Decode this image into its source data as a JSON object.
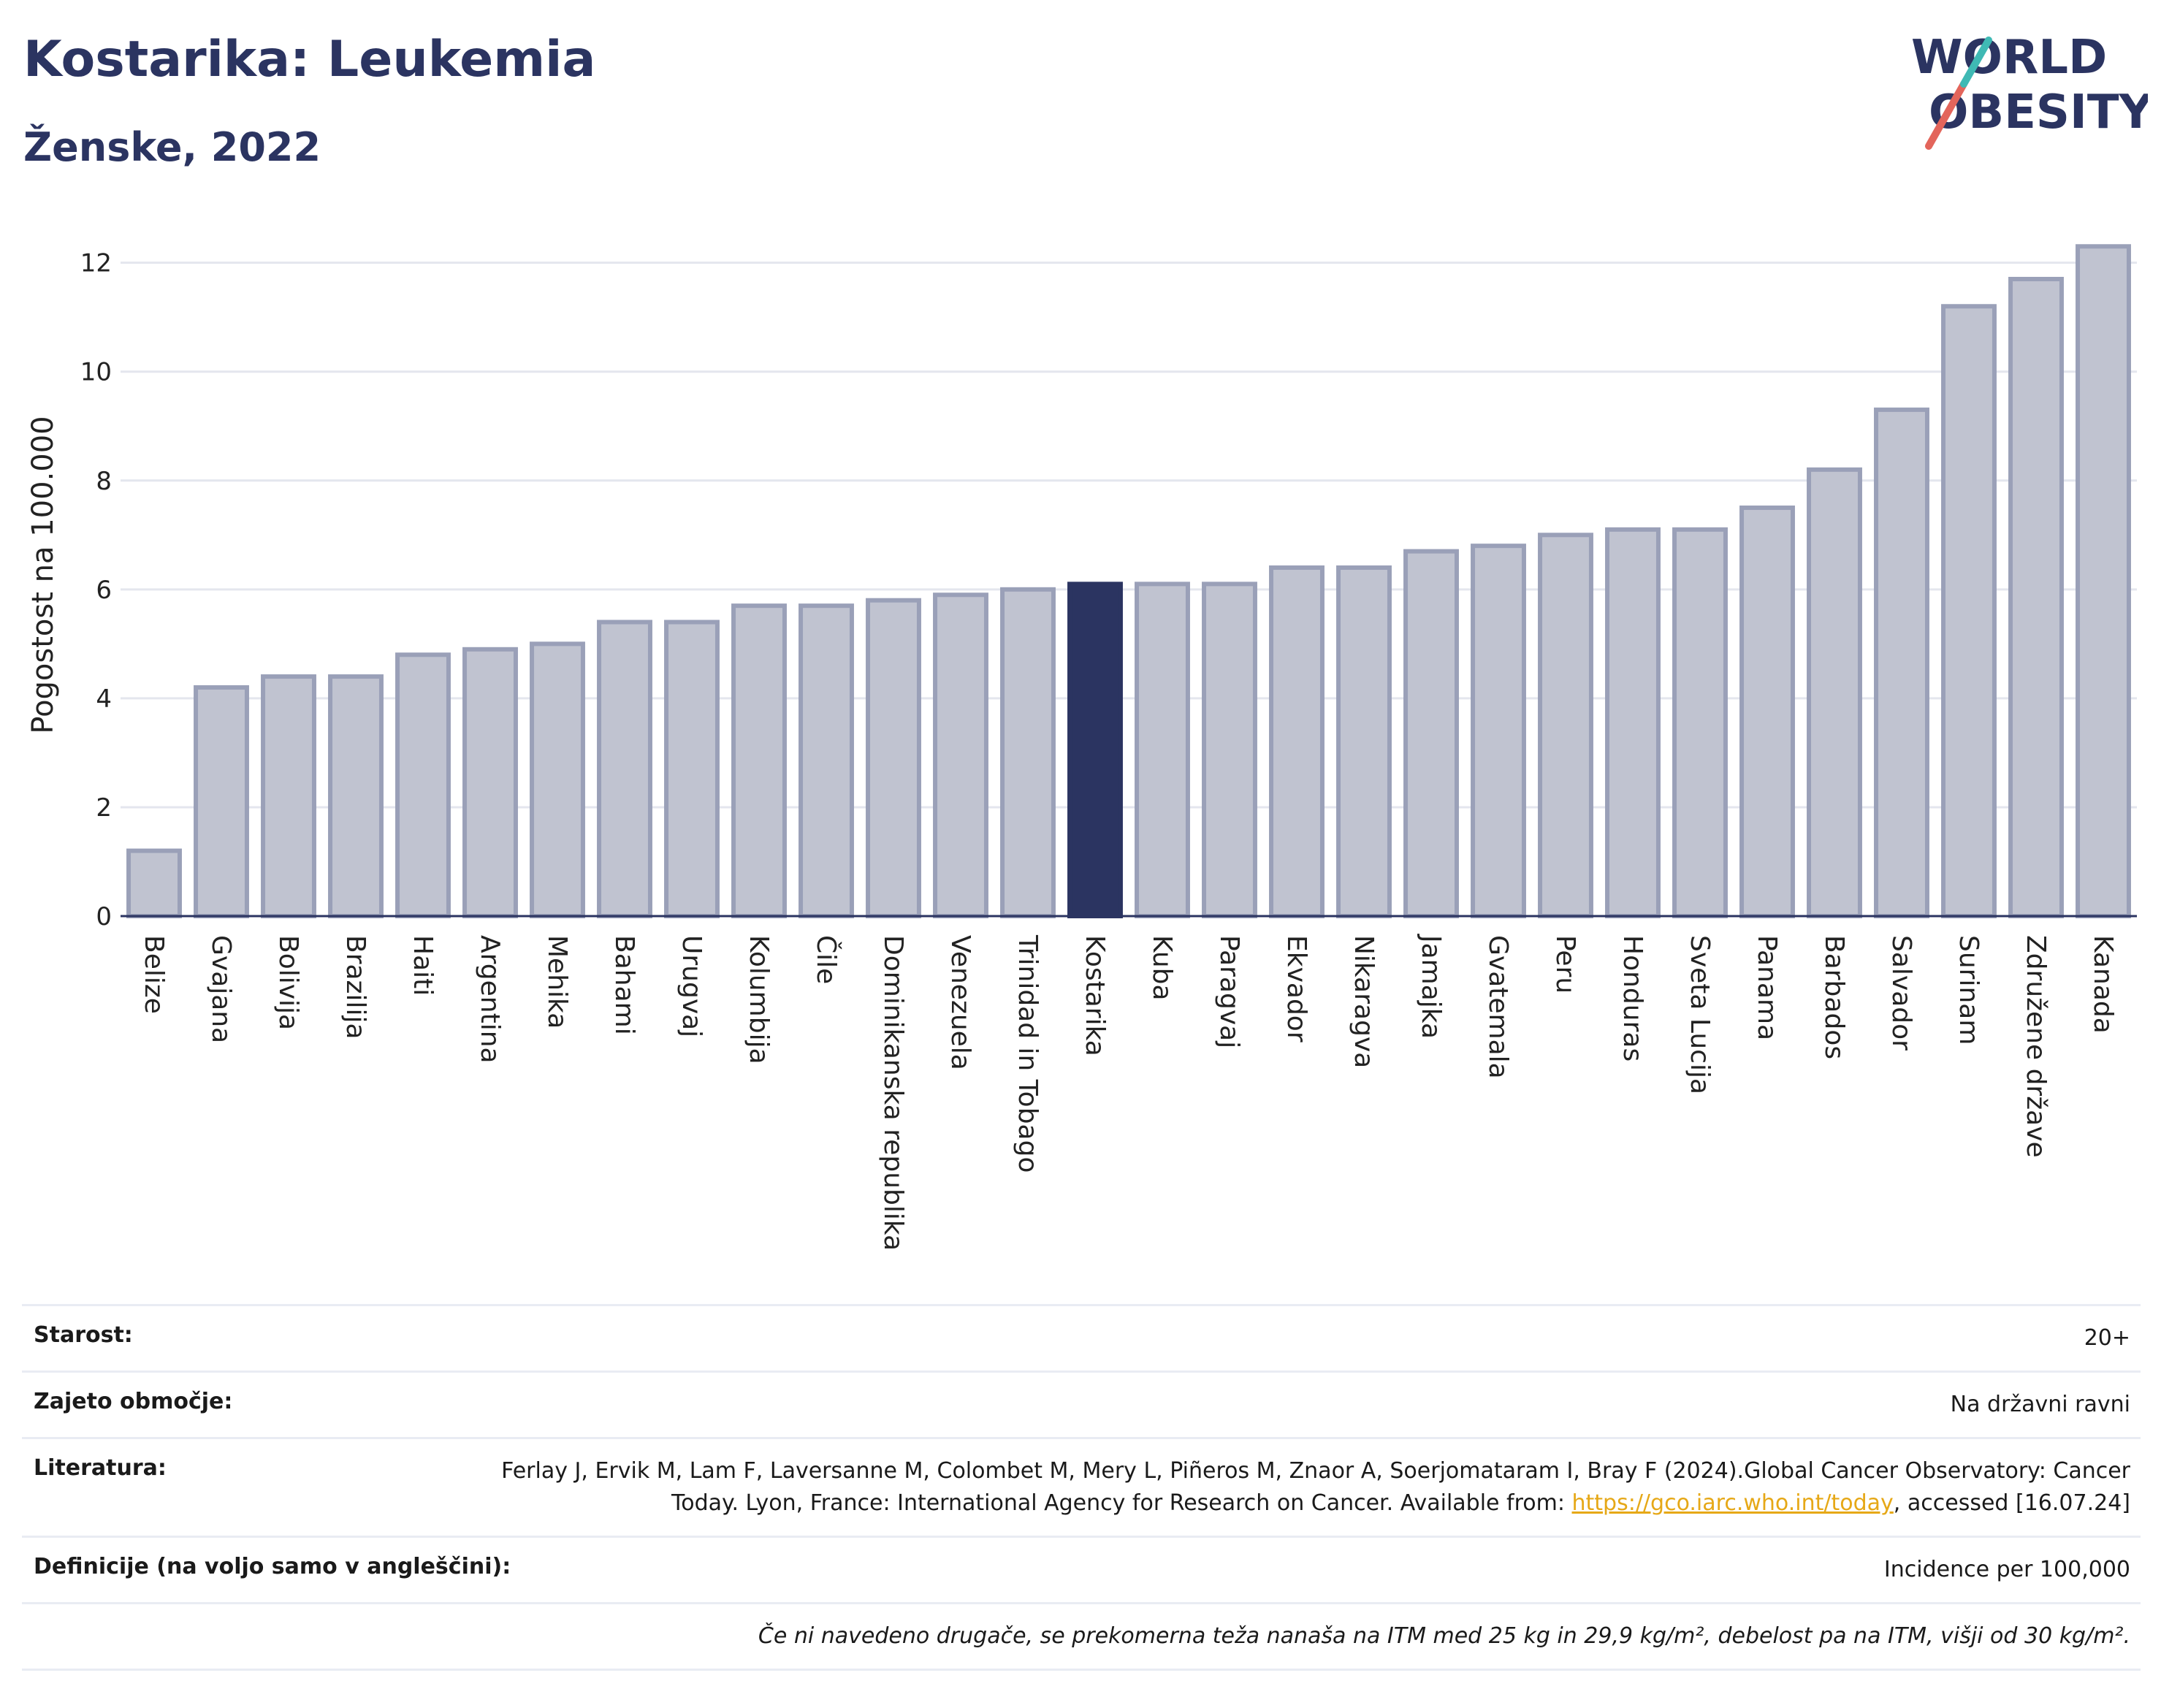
{
  "header": {
    "title": "Kostarika: Leukemia",
    "subtitle": "Ženske, 2022",
    "logo_line1": "WORLD",
    "logo_line2": "OBESITY"
  },
  "chart_data": {
    "type": "bar",
    "ylabel": "Pogostost na 100.000",
    "ylim": [
      0,
      12.8
    ],
    "yticks": [
      0,
      2,
      4,
      6,
      8,
      10,
      12
    ],
    "grid": true,
    "highlight": "Kostarika",
    "colors": {
      "bar": "#c0c3d0",
      "bar_border": "#9aa0b8",
      "highlight": "#2b3461",
      "grid": "#e4e6ee",
      "axis": "#2b3461"
    },
    "categories": [
      "Belize",
      "Gvajana",
      "Bolivija",
      "Brazilija",
      "Haiti",
      "Argentina",
      "Mehika",
      "Bahami",
      "Urugvaj",
      "Kolumbija",
      "Čile",
      "Dominikanska republika",
      "Venezuela",
      "Trinidad in Tobago",
      "Kostarika",
      "Kuba",
      "Paragvaj",
      "Ekvador",
      "Nikaragva",
      "Jamajka",
      "Gvatemala",
      "Peru",
      "Honduras",
      "Sveta Lucija",
      "Panama",
      "Barbados",
      "Salvador",
      "Surinam",
      "Združene države",
      "Kanada"
    ],
    "values": [
      1.2,
      4.2,
      4.4,
      4.4,
      4.8,
      4.9,
      5.0,
      5.4,
      5.4,
      5.7,
      5.7,
      5.8,
      5.9,
      6.0,
      6.1,
      6.1,
      6.1,
      6.4,
      6.4,
      6.7,
      6.8,
      7.0,
      7.1,
      7.1,
      7.5,
      8.2,
      9.3,
      11.2,
      11.7,
      12.3
    ]
  },
  "meta": {
    "age_label": "Starost:",
    "age_value": "20+",
    "coverage_label": "Zajeto območje:",
    "coverage_value": "Na državni ravni",
    "reference_label": "Literatura:",
    "reference_text1": "Ferlay J, Ervik M, Lam F, Laversanne M, Colombet M, Mery L, Piñeros M, Znaor A, Soerjomataram I, Bray F (2024).Global Cancer Observatory: Cancer Today. Lyon, France: International Agency for Research on Cancer. Available from: ",
    "reference_link": "https://gco.iarc.who.int/today",
    "reference_text2": ", accessed [16.07.24]",
    "definitions_label": "Definicije (na voljo samo v angleščini):",
    "definitions_value": "Incidence per 100,000",
    "note": "Če ni navedeno drugače, se prekomerna teža nanaša na ITM med 25 kg in 29,9 kg/m², debelost pa na ITM, višji od 30 kg/m²."
  }
}
